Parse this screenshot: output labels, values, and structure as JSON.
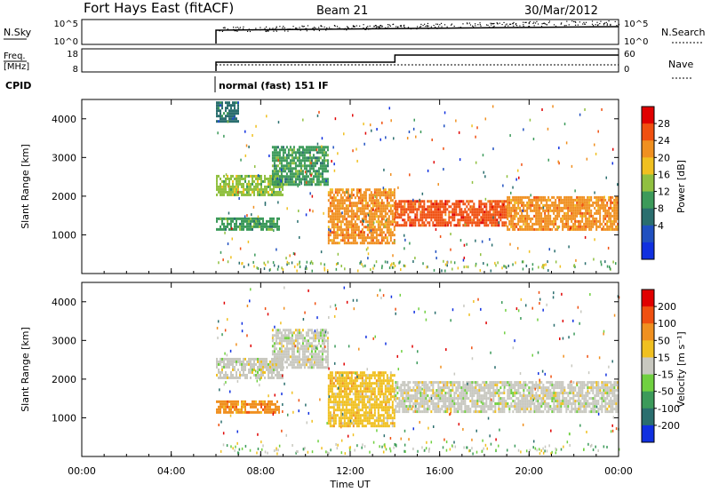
{
  "header": {
    "station": "Fort Hays East (fitACF)",
    "beam": "Beam 21",
    "date": "30/Mar/2012"
  },
  "noise_panel": {
    "left_label": "N.Sky",
    "left_ticks": [
      "10^5",
      "10^0"
    ],
    "right_ticks": [
      "10^5",
      "10^0"
    ],
    "right_label": "N.Search"
  },
  "freq_panel": {
    "left_label_1": "Freq.",
    "left_label_2": "[MHz]",
    "left_ticks": [
      "18",
      "8"
    ],
    "right_ticks": [
      "60",
      "0"
    ],
    "right_label": "Nave"
  },
  "cpid": {
    "label": "CPID",
    "mode": "normal (fast) 151 IF"
  },
  "chart_data": [
    {
      "type": "heatmap",
      "panel": "power",
      "ylabel": "Slant Range [km]",
      "ylim": [
        0,
        4500
      ],
      "yticks": [
        "4000",
        "3000",
        "2000",
        "1000"
      ],
      "colorbar": {
        "label": "Power [dB]",
        "ticks": [
          "28",
          "24",
          "20",
          "16",
          "12",
          "8",
          "4"
        ],
        "colors": [
          "#1030e0",
          "#2050c0",
          "#2a6e6e",
          "#3c9a5a",
          "#90c040",
          "#f0c020",
          "#f09020",
          "#f05010",
          "#e00000"
        ]
      },
      "echo_regions": [
        {
          "t_start": 6.0,
          "t_end": 9.0,
          "r_start": 2050,
          "r_end": 2550,
          "level": 16
        },
        {
          "t_start": 6.0,
          "t_end": 8.8,
          "r_start": 1150,
          "r_end": 1450,
          "level": 12
        },
        {
          "t_start": 8.5,
          "t_end": 11.0,
          "r_start": 2300,
          "r_end": 3300,
          "level": 12
        },
        {
          "t_start": 11.0,
          "t_end": 14.0,
          "r_start": 800,
          "r_end": 2200,
          "level": 24
        },
        {
          "t_start": 14.0,
          "t_end": 19.0,
          "r_start": 1250,
          "r_end": 1900,
          "level": 28
        },
        {
          "t_start": 19.0,
          "t_end": 24.0,
          "r_start": 1150,
          "r_end": 2000,
          "level": 24
        },
        {
          "t_start": 6.0,
          "t_end": 7.0,
          "r_start": 3900,
          "r_end": 4450,
          "level": 8
        }
      ]
    },
    {
      "type": "heatmap",
      "panel": "velocity",
      "ylabel": "Slant Range [km]",
      "xlabel": "Time UT",
      "ylim": [
        0,
        4500
      ],
      "yticks": [
        "4000",
        "3000",
        "2000",
        "1000"
      ],
      "xticks": [
        "00:00",
        "04:00",
        "08:00",
        "12:00",
        "16:00",
        "20:00",
        "00:00"
      ],
      "colorbar": {
        "label": "Velocity [m s⁻¹]",
        "ticks": [
          "200",
          "100",
          "50",
          "15",
          "-15",
          "-50",
          "-100",
          "-200"
        ],
        "colors": [
          "#1030e0",
          "#2a6e6e",
          "#3c9a5a",
          "#70d040",
          "#c8c8c0",
          "#f0c020",
          "#f09020",
          "#f05010",
          "#e00000"
        ]
      },
      "echo_regions": [
        {
          "t_start": 6.0,
          "t_end": 9.0,
          "r_start": 2050,
          "r_end": 2550,
          "level": -15
        },
        {
          "t_start": 6.0,
          "t_end": 8.8,
          "r_start": 1150,
          "r_end": 1450,
          "level": 50
        },
        {
          "t_start": 8.5,
          "t_end": 11.0,
          "r_start": 2300,
          "r_end": 3300,
          "level": -15
        },
        {
          "t_start": 11.0,
          "t_end": 14.0,
          "r_start": 800,
          "r_end": 2200,
          "level": 15
        },
        {
          "t_start": 14.0,
          "t_end": 24.0,
          "r_start": 1150,
          "r_end": 1950,
          "level": -15
        }
      ]
    }
  ]
}
